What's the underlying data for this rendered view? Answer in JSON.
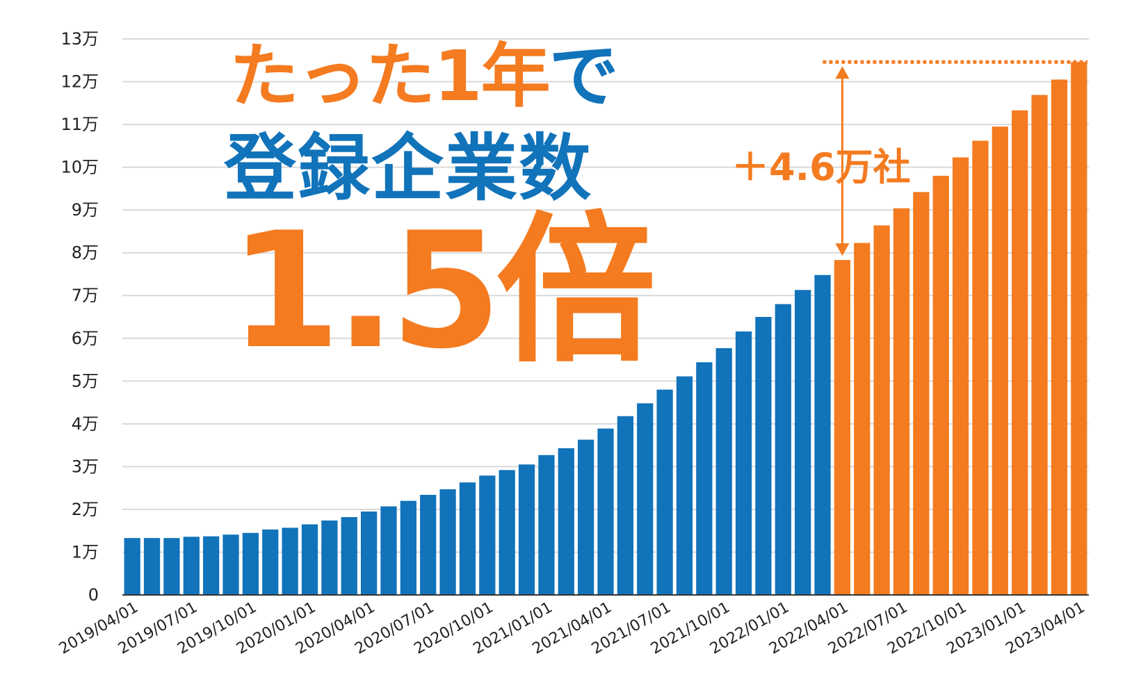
{
  "headline": {
    "line1_orange": "たった1年",
    "line1_blue": "で",
    "line2": "登録企業数",
    "line3": "1.5倍"
  },
  "annotation": {
    "growth_label": "＋4.6万社"
  },
  "colors": {
    "blue": "#1173ba",
    "orange": "#f47b20",
    "grid": "#d9d9d9"
  },
  "chart_data": {
    "type": "bar",
    "title": "",
    "xlabel": "",
    "ylabel": "",
    "ylim": [
      0,
      130000
    ],
    "grid": true,
    "y_ticks": [
      {
        "value": 0,
        "label": "0"
      },
      {
        "value": 10000,
        "label": "1万"
      },
      {
        "value": 20000,
        "label": "2万"
      },
      {
        "value": 30000,
        "label": "3万"
      },
      {
        "value": 40000,
        "label": "4万"
      },
      {
        "value": 50000,
        "label": "5万"
      },
      {
        "value": 60000,
        "label": "6万"
      },
      {
        "value": 70000,
        "label": "7万"
      },
      {
        "value": 80000,
        "label": "8万"
      },
      {
        "value": 90000,
        "label": "9万"
      },
      {
        "value": 100000,
        "label": "10万"
      },
      {
        "value": 110000,
        "label": "11万"
      },
      {
        "value": 120000,
        "label": "12万"
      },
      {
        "value": 130000,
        "label": "13万"
      }
    ],
    "x_tick_labels": [
      {
        "index": 0,
        "label": "2019/04/01"
      },
      {
        "index": 3,
        "label": "2019/07/01"
      },
      {
        "index": 6,
        "label": "2019/10/01"
      },
      {
        "index": 9,
        "label": "2020/01/01"
      },
      {
        "index": 12,
        "label": "2020/04/01"
      },
      {
        "index": 15,
        "label": "2020/07/01"
      },
      {
        "index": 18,
        "label": "2020/10/01"
      },
      {
        "index": 21,
        "label": "2021/01/01"
      },
      {
        "index": 24,
        "label": "2021/04/01"
      },
      {
        "index": 27,
        "label": "2021/07/01"
      },
      {
        "index": 30,
        "label": "2021/10/01"
      },
      {
        "index": 33,
        "label": "2022/01/01"
      },
      {
        "index": 36,
        "label": "2022/04/01"
      },
      {
        "index": 39,
        "label": "2022/07/01"
      },
      {
        "index": 42,
        "label": "2022/10/01"
      },
      {
        "index": 45,
        "label": "2023/01/01"
      },
      {
        "index": 48,
        "label": "2023/04/01"
      }
    ],
    "series": [
      {
        "color": "#1173ba",
        "start_index": 0,
        "values": [
          13300,
          13300,
          13300,
          13600,
          13700,
          14100,
          14500,
          15300,
          15700,
          16500,
          17400,
          18200,
          19500,
          20700,
          22000,
          23400,
          24700,
          26300,
          27900,
          29200,
          30500,
          32700,
          34300,
          36300,
          38900,
          41800,
          44800,
          48000,
          51100,
          54400,
          57700,
          61600,
          65000,
          68000,
          71300,
          74800
        ]
      },
      {
        "color": "#f47b20",
        "start_index": 36,
        "values": [
          78300,
          82300,
          86400,
          90400,
          94200,
          98000,
          102300,
          106200,
          109500,
          113300,
          116900,
          120500,
          124600
        ]
      }
    ]
  }
}
